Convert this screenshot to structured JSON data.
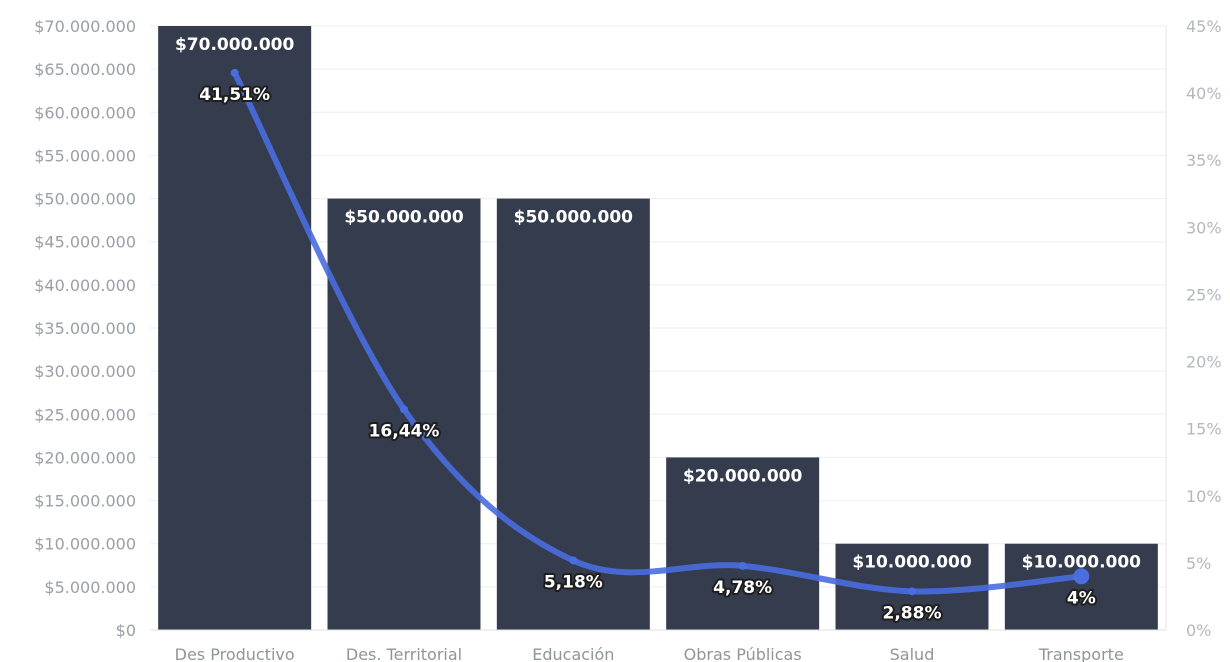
{
  "chart_data": {
    "type": "bar",
    "categories": [
      "Des Productivo",
      "Des. Territorial",
      "Educación",
      "Obras Públicas",
      "Salud",
      "Transporte"
    ],
    "series": [
      {
        "type": "bar",
        "axis": "left",
        "values": [
          70000000,
          50000000,
          50000000,
          20000000,
          10000000,
          10000000
        ],
        "labels": [
          "$70.000.000",
          "$50.000.000",
          "$50.000.000",
          "$20.000.000",
          "$10.000.000",
          "$10.000.000"
        ],
        "color": "#343c4e"
      },
      {
        "type": "line",
        "axis": "right",
        "values": [
          41.51,
          16.44,
          5.18,
          4.78,
          2.88,
          4
        ],
        "labels": [
          "41,51%",
          "16,44%",
          "5,18%",
          "4,78%",
          "2,88%",
          "4%"
        ],
        "color": "#4a6de0"
      }
    ],
    "y_left": {
      "ylim": [
        0,
        70000000
      ],
      "ticks": [
        "$0",
        "$5.000.000",
        "$10.000.000",
        "$15.000.000",
        "$20.000.000",
        "$25.000.000",
        "$30.000.000",
        "$35.000.000",
        "$40.000.000",
        "$45.000.000",
        "$50.000.000",
        "$55.000.000",
        "$60.000.000",
        "$65.000.000",
        "$70.000.000"
      ]
    },
    "y_right": {
      "ylim": [
        0,
        45
      ],
      "ticks": [
        "0%",
        "5%",
        "10%",
        "15%",
        "20%",
        "25%",
        "30%",
        "35%",
        "40%",
        "45%"
      ]
    },
    "grid": true,
    "legend": "none"
  }
}
